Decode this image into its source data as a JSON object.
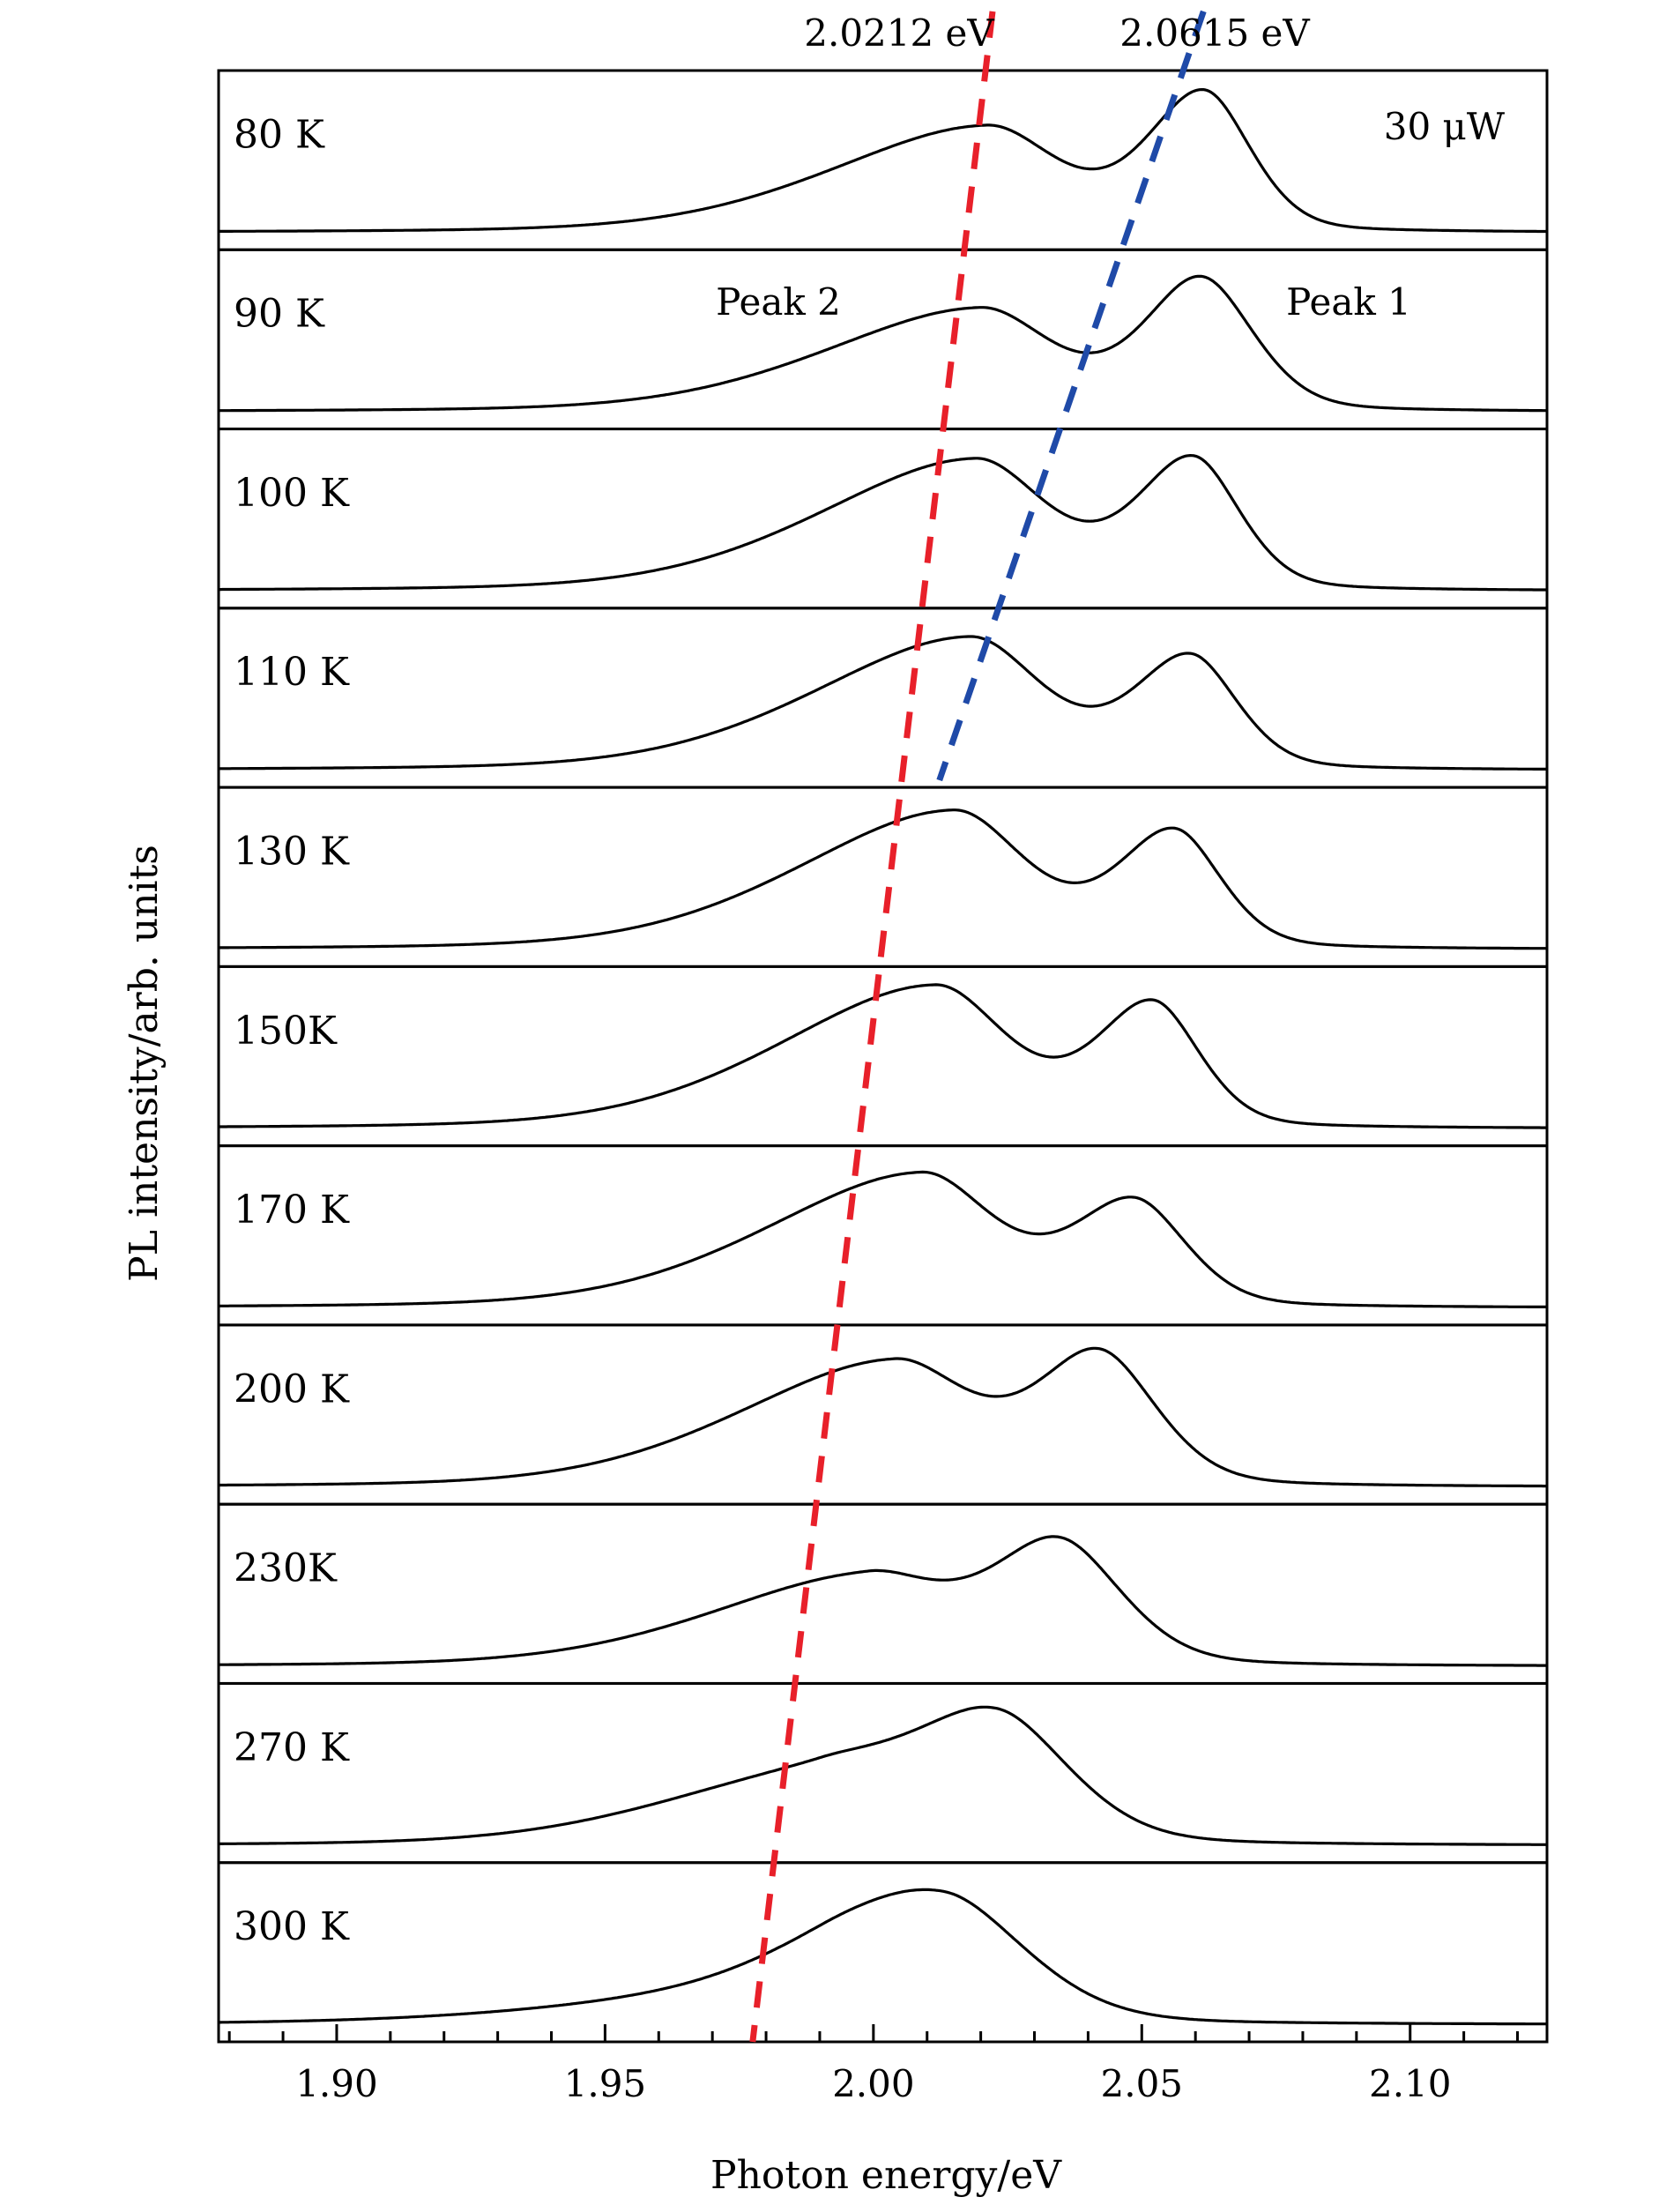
{
  "chart_data": {
    "type": "line",
    "xlabel": "Photon energy/eV",
    "ylabel": "PL intensity/arb. units",
    "xlim": [
      1.878,
      2.1255
    ],
    "x_ticks": [
      1.9,
      1.95,
      2.0,
      2.05,
      2.1
    ],
    "x_tick_labels": [
      "1.90",
      "1.95",
      "2.00",
      "2.05",
      "2.10"
    ],
    "x_minor_step": 0.01,
    "grid": false,
    "layout": "stacked panels, one per temperature",
    "annotations": {
      "peak2_energy": "2.0212 eV",
      "peak1_energy": "2.0615 eV",
      "power": "30 μW",
      "peak2_label": "Peak 2",
      "peak1_label": "Peak 1"
    },
    "guide_lines": [
      {
        "name": "Peak 2",
        "color": "#e8202a",
        "dashed": true,
        "points": [
          [
            2.0222,
            1.03
          ],
          [
            1.9775,
            0.0
          ]
        ]
      },
      {
        "name": "Peak 1",
        "color": "#1f4aa8",
        "dashed": true,
        "points": [
          [
            2.0615,
            1.03
          ],
          [
            2.0123,
            0.64
          ]
        ]
      }
    ],
    "series": [
      {
        "name": "80 K",
        "peaks": [
          {
            "center": 2.0212,
            "amp": 0.74,
            "hwl": 0.03,
            "hwr": 0.014
          },
          {
            "center": 2.0615,
            "amp": 0.98,
            "hwl": 0.011,
            "hwr": 0.009
          }
        ]
      },
      {
        "name": "90 K",
        "peaks": [
          {
            "center": 2.02,
            "amp": 0.72,
            "hwl": 0.03,
            "hwr": 0.014
          },
          {
            "center": 2.061,
            "amp": 0.93,
            "hwl": 0.011,
            "hwr": 0.01
          }
        ]
      },
      {
        "name": "100 K",
        "peaks": [
          {
            "center": 2.019,
            "amp": 0.92,
            "hwl": 0.03,
            "hwr": 0.014
          },
          {
            "center": 2.0595,
            "amp": 0.92,
            "hwl": 0.011,
            "hwr": 0.009
          }
        ]
      },
      {
        "name": "110 K",
        "peaks": [
          {
            "center": 2.018,
            "amp": 0.93,
            "hwl": 0.03,
            "hwr": 0.014
          },
          {
            "center": 2.059,
            "amp": 0.79,
            "hwl": 0.011,
            "hwr": 0.009
          }
        ]
      },
      {
        "name": "130 K",
        "peaks": [
          {
            "center": 2.015,
            "amp": 0.97,
            "hwl": 0.03,
            "hwr": 0.014
          },
          {
            "center": 2.056,
            "amp": 0.82,
            "hwl": 0.011,
            "hwr": 0.009
          }
        ]
      },
      {
        "name": "150K",
        "peaks": [
          {
            "center": 2.0115,
            "amp": 1.0,
            "hwl": 0.03,
            "hwr": 0.014
          },
          {
            "center": 2.052,
            "amp": 0.87,
            "hwl": 0.011,
            "hwr": 0.009
          }
        ]
      },
      {
        "name": "170 K",
        "peaks": [
          {
            "center": 2.009,
            "amp": 0.94,
            "hwl": 0.03,
            "hwr": 0.014
          },
          {
            "center": 2.0485,
            "amp": 0.74,
            "hwl": 0.012,
            "hwr": 0.01
          }
        ]
      },
      {
        "name": "200 K",
        "peaks": [
          {
            "center": 2.004,
            "amp": 0.88,
            "hwl": 0.03,
            "hwr": 0.015
          },
          {
            "center": 2.042,
            "amp": 0.92,
            "hwl": 0.012,
            "hwr": 0.011
          }
        ]
      },
      {
        "name": "230K",
        "peaks": [
          {
            "center": 1.999,
            "amp": 0.63,
            "hwl": 0.03,
            "hwr": 0.015
          },
          {
            "center": 2.0345,
            "amp": 0.86,
            "hwl": 0.013,
            "hwr": 0.012
          }
        ]
      },
      {
        "name": "270 K",
        "peaks": [
          {
            "center": 1.99,
            "amp": 0.5,
            "hwl": 0.03,
            "hwr": 0.018
          },
          {
            "center": 2.023,
            "amp": 0.87,
            "hwl": 0.016,
            "hwr": 0.014
          }
        ]
      },
      {
        "name": "300 K",
        "peaks": [
          {
            "center": 1.99,
            "amp": 0.25,
            "hwl": 0.04,
            "hwr": 0.02
          },
          {
            "center": 2.013,
            "amp": 0.82,
            "hwl": 0.022,
            "hwr": 0.016
          }
        ]
      }
    ]
  }
}
